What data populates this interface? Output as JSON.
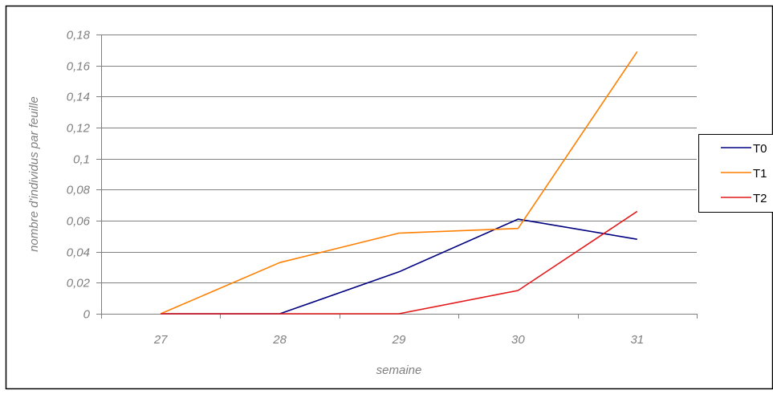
{
  "chart_data": {
    "type": "line",
    "title": "",
    "xlabel": "semaine",
    "ylabel": "nombre d'individus par feuille",
    "categories": [
      "27",
      "28",
      "29",
      "30",
      "31"
    ],
    "y_tick_labels": [
      "0",
      "0,02",
      "0,04",
      "0,06",
      "0,08",
      "0,1",
      "0,12",
      "0,14",
      "0,16",
      "0,18"
    ],
    "ylim": [
      0,
      0.18
    ],
    "grid": true,
    "legend_position": "right",
    "series": [
      {
        "name": "T0",
        "color": "#000080",
        "values": [
          0,
          0,
          0.027,
          0.061,
          0.048
        ]
      },
      {
        "name": "T1",
        "color": "#FF7F00",
        "values": [
          0,
          0.033,
          0.052,
          0.055,
          0.169
        ]
      },
      {
        "name": "T2",
        "color": "#E31A1C",
        "values": [
          0,
          0,
          0,
          0.015,
          0.066
        ]
      }
    ]
  }
}
